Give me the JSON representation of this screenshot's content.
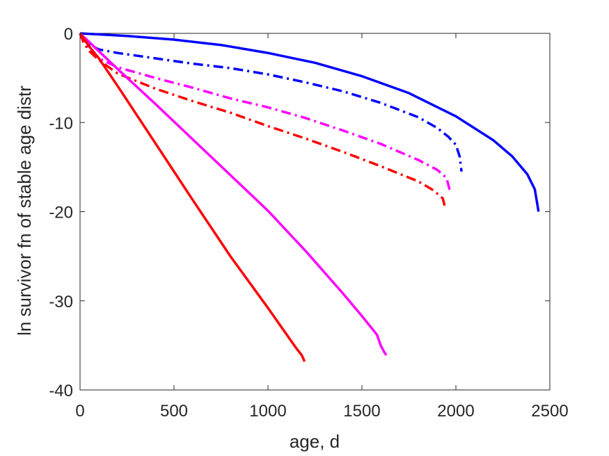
{
  "chart_data": {
    "type": "line",
    "title": "",
    "xlabel": "age, d",
    "ylabel": "ln survivor fn of stable age distr",
    "xlim": [
      0,
      2500
    ],
    "ylim": [
      -40,
      0
    ],
    "xticks": [
      0,
      500,
      1000,
      1500,
      2000,
      2500
    ],
    "yticks": [
      0,
      -10,
      -20,
      -30,
      -40
    ],
    "xtick_labels": [
      "0",
      "500",
      "1000",
      "1500",
      "2000",
      "2500"
    ],
    "ytick_labels": [
      "0",
      "-10",
      "-20",
      "-30",
      "-40"
    ],
    "grid": false,
    "legend": "none",
    "series": [
      {
        "color": "#0000ff",
        "style": "solid",
        "points": [
          [
            0,
            0
          ],
          [
            250,
            -0.3
          ],
          [
            500,
            -0.7
          ],
          [
            750,
            -1.3
          ],
          [
            1000,
            -2.2
          ],
          [
            1250,
            -3.3
          ],
          [
            1500,
            -4.8
          ],
          [
            1750,
            -6.7
          ],
          [
            2000,
            -9.3
          ],
          [
            2200,
            -12.0
          ],
          [
            2300,
            -13.8
          ],
          [
            2380,
            -15.8
          ],
          [
            2420,
            -17.5
          ],
          [
            2440,
            -20.0
          ]
        ]
      },
      {
        "color": "#0000ff",
        "style": "dashdot",
        "points": [
          [
            0,
            0
          ],
          [
            20,
            -0.7
          ],
          [
            50,
            -1.3
          ],
          [
            100,
            -1.8
          ],
          [
            200,
            -2.2
          ],
          [
            400,
            -2.8
          ],
          [
            600,
            -3.4
          ],
          [
            800,
            -3.9
          ],
          [
            1000,
            -4.6
          ],
          [
            1200,
            -5.5
          ],
          [
            1400,
            -6.5
          ],
          [
            1600,
            -7.8
          ],
          [
            1800,
            -9.4
          ],
          [
            1900,
            -10.6
          ],
          [
            1960,
            -11.6
          ],
          [
            2000,
            -12.5
          ],
          [
            2020,
            -13.8
          ],
          [
            2030,
            -15.5
          ]
        ]
      },
      {
        "color": "#ff00ff",
        "style": "dashdot",
        "points": [
          [
            0,
            0
          ],
          [
            20,
            -0.9
          ],
          [
            50,
            -1.8
          ],
          [
            100,
            -2.8
          ],
          [
            200,
            -3.8
          ],
          [
            400,
            -5.0
          ],
          [
            600,
            -6.1
          ],
          [
            800,
            -7.3
          ],
          [
            1000,
            -8.3
          ],
          [
            1200,
            -9.5
          ],
          [
            1400,
            -10.9
          ],
          [
            1600,
            -12.4
          ],
          [
            1800,
            -14.2
          ],
          [
            1900,
            -15.3
          ],
          [
            1950,
            -16.2
          ],
          [
            1970,
            -17.8
          ]
        ]
      },
      {
        "color": "#ff0000",
        "style": "dashdot",
        "points": [
          [
            0,
            0
          ],
          [
            20,
            -1.1
          ],
          [
            50,
            -2.0
          ],
          [
            100,
            -3.0
          ],
          [
            200,
            -4.5
          ],
          [
            400,
            -6.2
          ],
          [
            600,
            -7.6
          ],
          [
            800,
            -8.9
          ],
          [
            1000,
            -10.4
          ],
          [
            1200,
            -11.8
          ],
          [
            1400,
            -13.3
          ],
          [
            1600,
            -14.9
          ],
          [
            1800,
            -16.6
          ],
          [
            1880,
            -17.6
          ],
          [
            1930,
            -18.5
          ],
          [
            1945,
            -19.7
          ]
        ]
      },
      {
        "color": "#ff00ff",
        "style": "solid",
        "points": [
          [
            0,
            0
          ],
          [
            50,
            -1.0
          ],
          [
            100,
            -2.0
          ],
          [
            200,
            -4.0
          ],
          [
            400,
            -7.9
          ],
          [
            600,
            -11.9
          ],
          [
            800,
            -15.9
          ],
          [
            1000,
            -19.9
          ],
          [
            1200,
            -24.4
          ],
          [
            1400,
            -29.2
          ],
          [
            1500,
            -31.7
          ],
          [
            1580,
            -33.8
          ],
          [
            1600,
            -35.0
          ],
          [
            1620,
            -35.8
          ],
          [
            1630,
            -36.1
          ]
        ]
      },
      {
        "color": "#ff0000",
        "style": "solid",
        "points": [
          [
            0,
            0
          ],
          [
            50,
            -1.5
          ],
          [
            100,
            -2.8
          ],
          [
            200,
            -5.9
          ],
          [
            400,
            -12.3
          ],
          [
            600,
            -18.7
          ],
          [
            800,
            -25.0
          ],
          [
            1000,
            -30.8
          ],
          [
            1100,
            -33.8
          ],
          [
            1150,
            -35.3
          ],
          [
            1180,
            -36.1
          ],
          [
            1195,
            -36.8
          ]
        ]
      }
    ]
  }
}
